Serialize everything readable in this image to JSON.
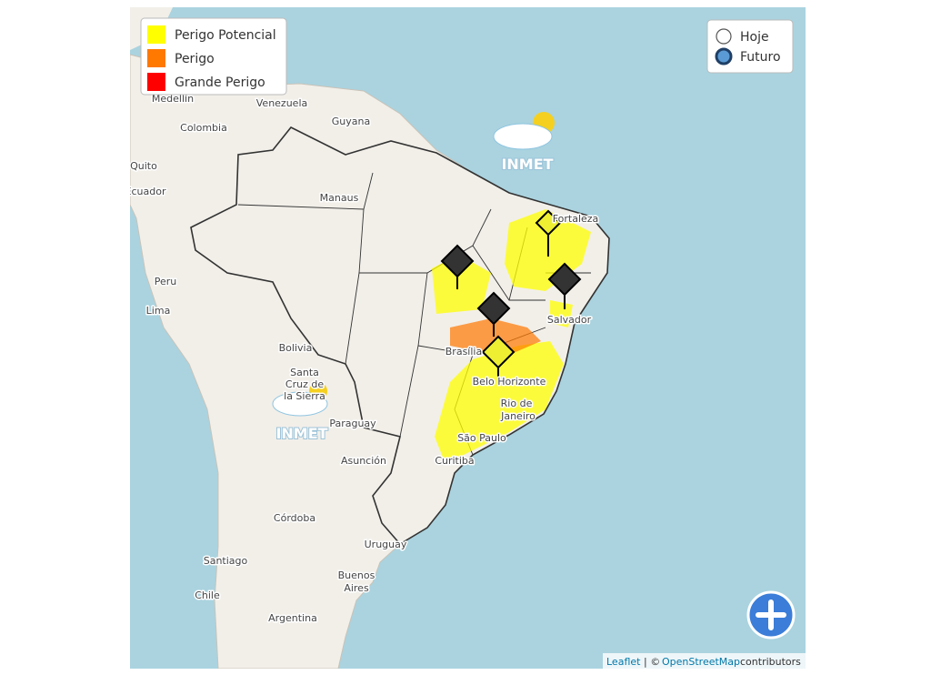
{
  "legend": {
    "items": [
      {
        "label": "Perigo Potencial",
        "color": "#ffff00"
      },
      {
        "label": "Perigo",
        "color": "#ff7800"
      },
      {
        "label": "Grande Perigo",
        "color": "#ff0000"
      }
    ]
  },
  "radios": [
    {
      "label": "Hoje",
      "checked": false
    },
    {
      "label": "Futuro",
      "checked": true
    }
  ],
  "watermark": "INMET",
  "map_labels": [
    "Medellín",
    "Venezuela",
    "Guyana",
    "Colombia",
    "Quito",
    "Manaus",
    "Fortaleza",
    "Peru",
    "Lima",
    "Salvador",
    "Bolivia",
    "Santa",
    "Cruz de",
    "la Sierra",
    "Brasília",
    "Belo Horizonte",
    "Rio de",
    "Janeiro",
    "Paraguay",
    "São Paulo",
    "Asunción",
    "Curitiba",
    "Córdoba",
    "Santiago",
    "Uruguay",
    "Buenos",
    "Aires",
    "Chile",
    "Argentina",
    "Ecuador"
  ],
  "attribution": {
    "leaflet": "Leaflet",
    "separator": "| ©",
    "osm": "OpenStreetMap",
    "suffix": "contributors"
  }
}
